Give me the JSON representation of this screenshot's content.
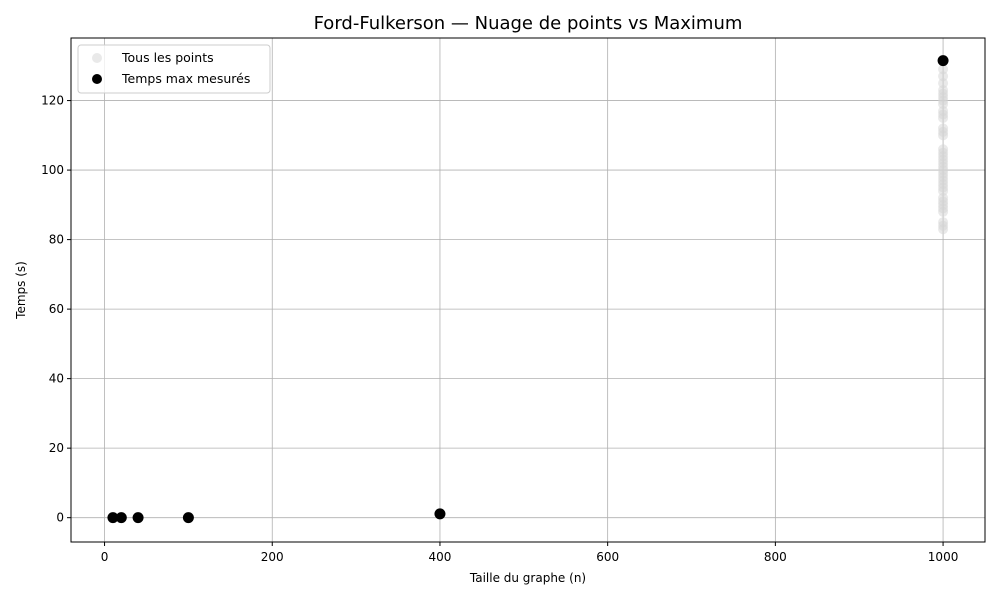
{
  "chart_data": {
    "type": "scatter",
    "title": "Ford-Fulkerson — Nuage de points vs Maximum",
    "xlabel": "Taille du graphe (n)",
    "ylabel": "Temps (s)",
    "xlim": [
      -40,
      1050
    ],
    "ylim": [
      -7,
      138
    ],
    "xticks": [
      0,
      200,
      400,
      600,
      800,
      1000
    ],
    "yticks": [
      0,
      20,
      40,
      60,
      80,
      100,
      120
    ],
    "grid": true,
    "legend_position": "top-left",
    "series": [
      {
        "name": "Tous les points",
        "color": "#d3d3d3",
        "marker": "circle",
        "points": [
          [
            1000,
            83
          ],
          [
            1000,
            84
          ],
          [
            1000,
            85
          ],
          [
            1000,
            88
          ],
          [
            1000,
            89
          ],
          [
            1000,
            90
          ],
          [
            1000,
            91
          ],
          [
            1000,
            92
          ],
          [
            1000,
            94
          ],
          [
            1000,
            95
          ],
          [
            1000,
            96
          ],
          [
            1000,
            97
          ],
          [
            1000,
            98
          ],
          [
            1000,
            99
          ],
          [
            1000,
            100
          ],
          [
            1000,
            101
          ],
          [
            1000,
            102
          ],
          [
            1000,
            103
          ],
          [
            1000,
            104
          ],
          [
            1000,
            105
          ],
          [
            1000,
            106
          ],
          [
            1000,
            110
          ],
          [
            1000,
            111
          ],
          [
            1000,
            112
          ],
          [
            1000,
            115
          ],
          [
            1000,
            116
          ],
          [
            1000,
            117
          ],
          [
            1000,
            119
          ],
          [
            1000,
            120
          ],
          [
            1000,
            121
          ],
          [
            1000,
            122
          ],
          [
            1000,
            123
          ],
          [
            1000,
            125
          ],
          [
            1000,
            127
          ],
          [
            1000,
            129
          ]
        ]
      },
      {
        "name": "Temps max mesurés",
        "color": "#000000",
        "marker": "circle",
        "points": [
          [
            10,
            0.0
          ],
          [
            20,
            0.0
          ],
          [
            40,
            0.0
          ],
          [
            100,
            0.0
          ],
          [
            400,
            1.1
          ],
          [
            1000,
            131.5
          ]
        ]
      }
    ]
  }
}
